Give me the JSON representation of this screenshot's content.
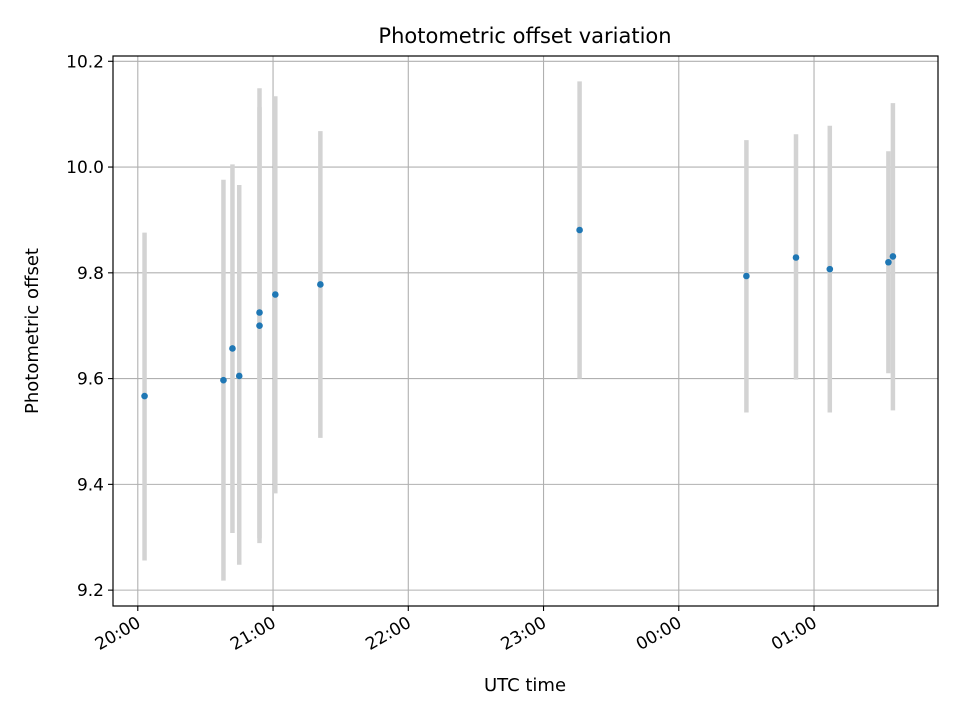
{
  "chart_data": {
    "type": "scatter",
    "title": "Photometric offset variation",
    "xlabel": "UTC time",
    "ylabel": "Photometric offset",
    "x_axis_type": "time",
    "x_ticks": [
      "20:00",
      "21:00",
      "22:00",
      "23:00",
      "00:00",
      "01:00"
    ],
    "y_ticks": [
      "9.2",
      "9.4",
      "9.6",
      "9.8",
      "10.0",
      "10.2"
    ],
    "xlim": [
      "19:49",
      "01:55"
    ],
    "ylim": [
      9.17,
      10.21
    ],
    "grid": true,
    "legend": "none",
    "colors": {
      "points": "#1f77b4",
      "errorbars": "#d3d3d3",
      "grid": "#b0b0b0"
    },
    "points": [
      {
        "time": "20:03",
        "y": 9.567,
        "ylow": 9.256,
        "yhigh": 9.876
      },
      {
        "time": "20:38",
        "y": 9.597,
        "ylow": 9.218,
        "yhigh": 9.976
      },
      {
        "time": "20:42",
        "y": 9.657,
        "ylow": 9.308,
        "yhigh": 10.005
      },
      {
        "time": "20:45",
        "y": 9.605,
        "ylow": 9.248,
        "yhigh": 9.966
      },
      {
        "time": "20:54",
        "y": 9.725,
        "ylow": 9.298,
        "yhigh": 10.149
      },
      {
        "time": "20:54",
        "y": 9.7,
        "ylow": 9.289,
        "yhigh": 10.113
      },
      {
        "time": "21:01",
        "y": 9.759,
        "ylow": 9.383,
        "yhigh": 10.134
      },
      {
        "time": "21:21",
        "y": 9.778,
        "ylow": 9.488,
        "yhigh": 10.068
      },
      {
        "time": "23:16",
        "y": 9.881,
        "ylow": 9.6,
        "yhigh": 10.162
      },
      {
        "time": "00:30",
        "y": 9.794,
        "ylow": 9.536,
        "yhigh": 10.051
      },
      {
        "time": "00:52",
        "y": 9.829,
        "ylow": 9.598,
        "yhigh": 10.062
      },
      {
        "time": "01:07",
        "y": 9.807,
        "ylow": 9.536,
        "yhigh": 10.078
      },
      {
        "time": "01:33",
        "y": 9.82,
        "ylow": 9.61,
        "yhigh": 10.03
      },
      {
        "time": "01:35",
        "y": 9.831,
        "ylow": 9.54,
        "yhigh": 10.121
      }
    ]
  }
}
